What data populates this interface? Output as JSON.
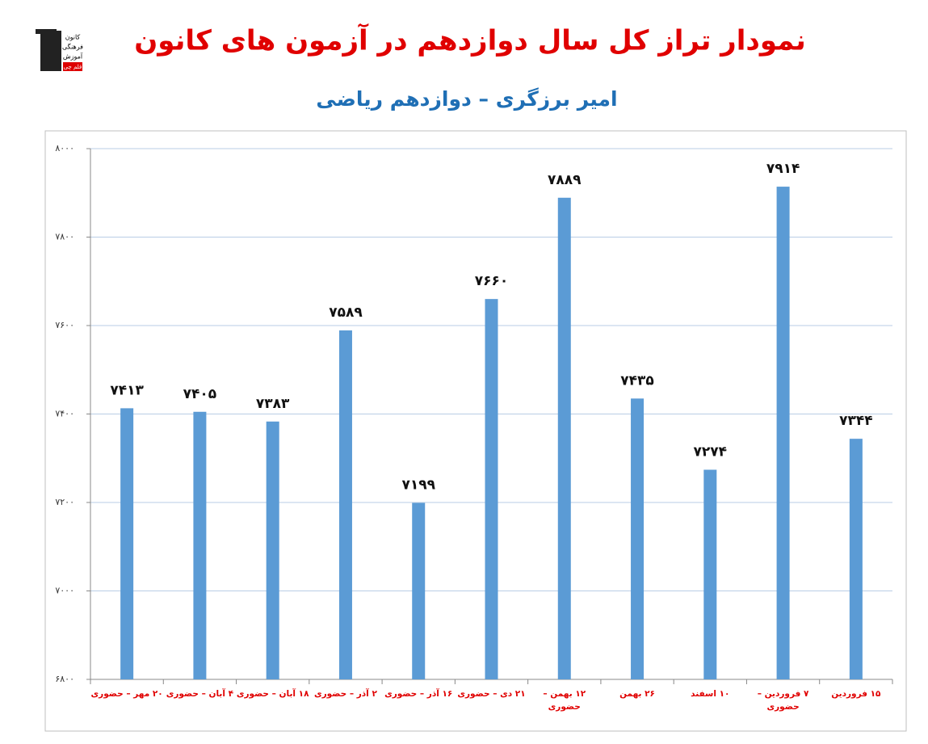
{
  "logo": [
    "کانون",
    "فرهنگی",
    "آموزش",
    "قلم چی"
  ],
  "chart_data": {
    "type": "bar",
    "title": "نمودار تراز کل سال دوازدهم در آزمون های کانون",
    "subtitle": "امیر برزگری – دوازدهم ریاضی",
    "categories": [
      "۲۰ مهر – حضوری",
      "۴ آبان – حضوری",
      "۱۸ آبان – حضوری",
      "۲ آذر – حضوری",
      "۱۶ آذر – حضوری",
      "۲۱ دی – حضوری",
      "۱۲ بهمن – حضوری",
      "۲۶ بهمن",
      "۱۰ اسفند",
      "۷ فروردین – حضوری",
      "۱۵ فروردین"
    ],
    "values": [
      7413,
      7405,
      7383,
      7589,
      7199,
      7660,
      7889,
      7435,
      7274,
      7914,
      7344
    ],
    "value_labels": [
      "۷۴۱۳",
      "۷۴۰۵",
      "۷۳۸۳",
      "۷۵۸۹",
      "۷۱۹۹",
      "۷۶۶۰",
      "۷۸۸۹",
      "۷۴۳۵",
      "۷۲۷۴",
      "۷۹۱۴",
      "۷۳۴۴"
    ],
    "color": "#5b9bd5",
    "ylim": [
      6800,
      8000
    ],
    "yticks": [
      {
        "value": 6800,
        "label": "۶۸۰۰"
      },
      {
        "value": 7000,
        "label": "۷۰۰۰"
      },
      {
        "value": 7200,
        "label": "۷۲۰۰"
      },
      {
        "value": 7400,
        "label": "۷۴۰۰"
      },
      {
        "value": 7600,
        "label": "۷۶۰۰"
      },
      {
        "value": 7800,
        "label": "۷۸۰۰"
      },
      {
        "value": 8000,
        "label": "۸۰۰۰"
      }
    ],
    "grid": true
  }
}
